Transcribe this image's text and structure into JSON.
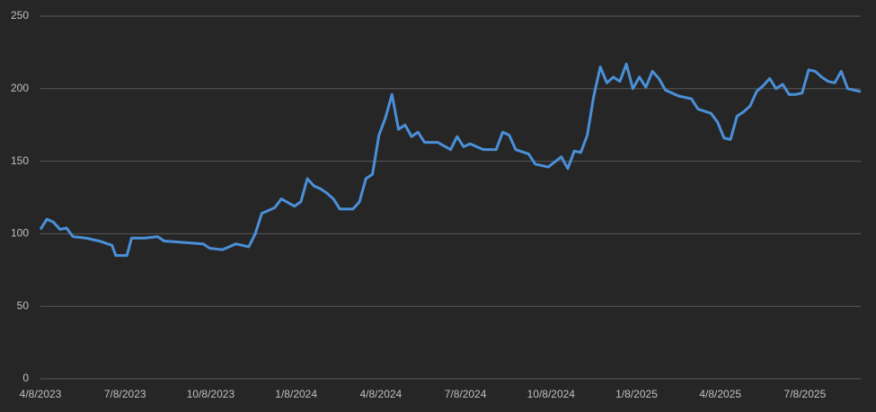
{
  "chart_data": {
    "type": "line",
    "color": "#4a90d9",
    "grid": true,
    "ylim": [
      0,
      250
    ],
    "yticks": [
      0,
      50,
      100,
      150,
      200,
      250
    ],
    "xlim": [
      "4/8/2023",
      "9/6/2025"
    ],
    "xticks": [
      "4/8/2023",
      "7/8/2023",
      "10/8/2023",
      "1/8/2024",
      "4/8/2024",
      "7/8/2024",
      "10/8/2024",
      "1/8/2025",
      "4/8/2025",
      "7/8/2025"
    ],
    "x": [
      "4/8/2023",
      "4/15/2023",
      "4/22/2023",
      "4/29/2023",
      "5/6/2023",
      "5/13/2023",
      "5/27/2023",
      "6/10/2023",
      "6/24/2023",
      "6/28/2023",
      "7/10/2023",
      "7/15/2023",
      "7/29/2023",
      "8/12/2023",
      "8/19/2023",
      "9/9/2023",
      "9/30/2023",
      "10/7/2023",
      "10/21/2023",
      "11/4/2023",
      "11/18/2023",
      "11/25/2023",
      "12/2/2023",
      "12/16/2023",
      "12/23/2023",
      "1/6/2024",
      "1/13/2024",
      "1/20/2024",
      "1/27/2024",
      "2/3/2024",
      "2/10/2024",
      "2/17/2024",
      "2/24/2024",
      "3/9/2024",
      "3/16/2024",
      "3/23/2024",
      "3/30/2024",
      "4/6/2024",
      "4/13/2024",
      "4/20/2024",
      "4/27/2024",
      "5/4/2024",
      "5/11/2024",
      "5/18/2024",
      "5/25/2024",
      "6/8/2024",
      "6/22/2024",
      "6/29/2024",
      "7/6/2024",
      "7/13/2024",
      "7/27/2024",
      "8/10/2024",
      "8/17/2024",
      "8/24/2024",
      "8/31/2024",
      "9/14/2024",
      "9/21/2024",
      "10/5/2024",
      "10/19/2024",
      "10/26/2024",
      "11/2/2024",
      "11/9/2024",
      "11/16/2024",
      "11/23/2024",
      "11/30/2024",
      "12/7/2024",
      "12/14/2024",
      "12/21/2024",
      "12/28/2024",
      "1/4/2025",
      "1/11/2025",
      "1/18/2025",
      "1/25/2025",
      "2/1/2025",
      "2/8/2025",
      "2/22/2025",
      "3/8/2025",
      "3/15/2025",
      "3/29/2025",
      "4/5/2025",
      "4/12/2025",
      "4/19/2025",
      "4/26/2025",
      "5/3/2025",
      "5/10/2025",
      "5/17/2025",
      "5/24/2025",
      "5/31/2025",
      "6/7/2025",
      "6/14/2025",
      "6/21/2025",
      "6/28/2025",
      "7/5/2025",
      "7/12/2025",
      "7/19/2025",
      "7/26/2025",
      "8/2/2025",
      "8/9/2025",
      "8/16/2025",
      "8/23/2025",
      "8/30/2025",
      "9/6/2025"
    ],
    "values": [
      103,
      110,
      108,
      103,
      104,
      98,
      97,
      95,
      92,
      85,
      85,
      97,
      97,
      98,
      95,
      94,
      93,
      90,
      89,
      93,
      91,
      100,
      114,
      118,
      124,
      119,
      122,
      138,
      133,
      131,
      128,
      124,
      117,
      117,
      122,
      138,
      141,
      168,
      180,
      196,
      172,
      175,
      167,
      170,
      163,
      163,
      158,
      167,
      160,
      162,
      158,
      158,
      170,
      168,
      158,
      155,
      148,
      146,
      153,
      145,
      157,
      156,
      168,
      195,
      215,
      204,
      208,
      205,
      217,
      200,
      208,
      201,
      212,
      207,
      199,
      195,
      193,
      186,
      183,
      177,
      166,
      165,
      181,
      184,
      188,
      198,
      202,
      207,
      200,
      203,
      196,
      196,
      197,
      213,
      212,
      208,
      205,
      204,
      212,
      200,
      199,
      198
    ]
  }
}
